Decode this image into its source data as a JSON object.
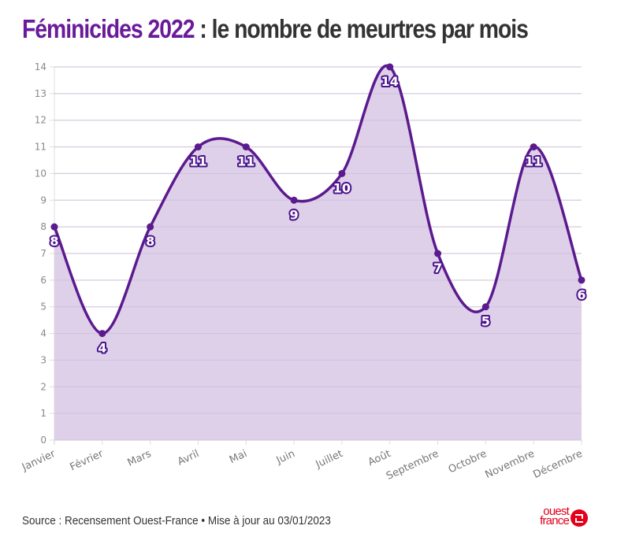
{
  "title": {
    "accent": "Féminicides 2022",
    "rest": " : le nombre de meurtres par mois"
  },
  "footer": {
    "source": "Source : Recensement Ouest-France • Mise à jour au 03/01/2023"
  },
  "logo": {
    "line1": "ouest",
    "line2": "france"
  },
  "colors": {
    "accent": "#6a1b9a",
    "line": "#5b1a8e",
    "fill": "#dccde8",
    "grid": "#e8e8e8",
    "logo": "#e2001a"
  },
  "chart_data": {
    "type": "line",
    "title": "Féminicides 2022 : le nombre de meurtres par mois",
    "xlabel": "",
    "ylabel": "",
    "categories": [
      "Janvier",
      "Février",
      "Mars",
      "Avril",
      "Mai",
      "Juin",
      "Juillet",
      "Août",
      "Septembre",
      "Octobre",
      "Novembre",
      "Décembre"
    ],
    "values": [
      8,
      4,
      8,
      11,
      11,
      9,
      10,
      14,
      7,
      5,
      11,
      6
    ],
    "ylim": [
      0,
      14
    ],
    "yticks": [
      0,
      1,
      2,
      3,
      4,
      5,
      6,
      7,
      8,
      9,
      10,
      11,
      12,
      13,
      14
    ],
    "grid": true,
    "area_fill": true,
    "smooth": true,
    "data_labels": true
  }
}
